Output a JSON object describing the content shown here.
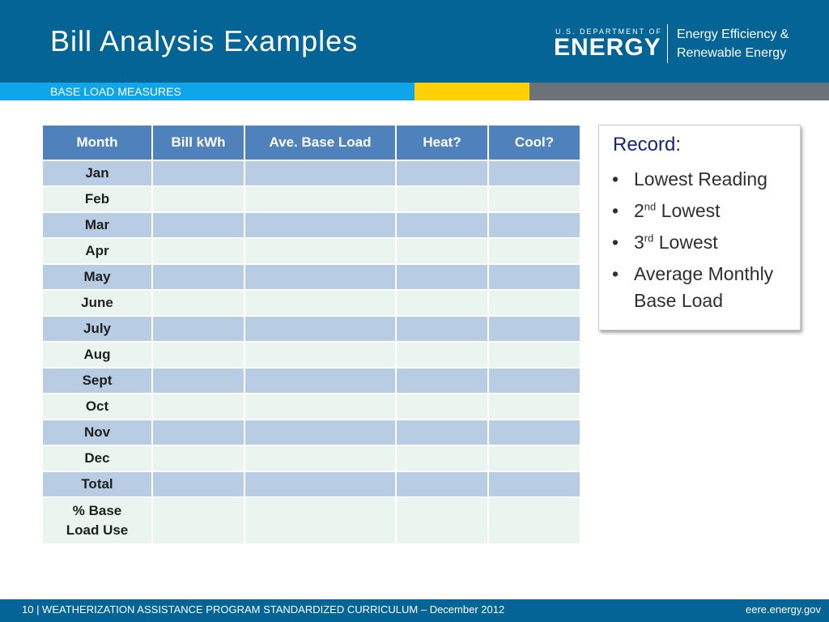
{
  "colors": {
    "header_bg": "#046496",
    "band_blue": "#0fa5e8",
    "band_yellow": "#fed106",
    "band_gray": "#6d7278",
    "table_header": "#4f81bd",
    "row_odd": "#b8cce4",
    "row_even": "#e9f5ee",
    "record_title": "#1a237e"
  },
  "header": {
    "title": "Bill Analysis Examples",
    "logo": {
      "department": "U.S. DEPARTMENT OF",
      "agency": "ENERGY",
      "office_line1": "Energy Efficiency &",
      "office_line2": "Renewable Energy"
    },
    "subheading": "BASE LOAD MEASURES"
  },
  "table": {
    "headers": [
      "Month",
      "Bill kWh",
      "Ave. Base Load",
      "Heat?",
      "Cool?"
    ],
    "rows": [
      "Jan",
      "Feb",
      "Mar",
      "Apr",
      "May",
      "June",
      "July",
      "Aug",
      "Sept",
      "Oct",
      "Nov",
      "Dec",
      "Total"
    ],
    "last_row_line1": "% Base",
    "last_row_line2": "Load Use"
  },
  "record": {
    "title": "Record:",
    "item1": "Lowest Reading",
    "item2_num": "2",
    "item2_sup": "nd",
    "item2_text": " Lowest",
    "item3_num": "3",
    "item3_sup": "rd",
    "item3_text": " Lowest",
    "item4_line1": "Average Monthly",
    "item4_line2": "Base Load",
    "bullet": "•"
  },
  "footer": {
    "text": "10 | WEATHERIZATION ASSISTANCE PROGRAM STANDARDIZED CURRICULUM – December 2012",
    "url": "eere.energy.gov"
  }
}
